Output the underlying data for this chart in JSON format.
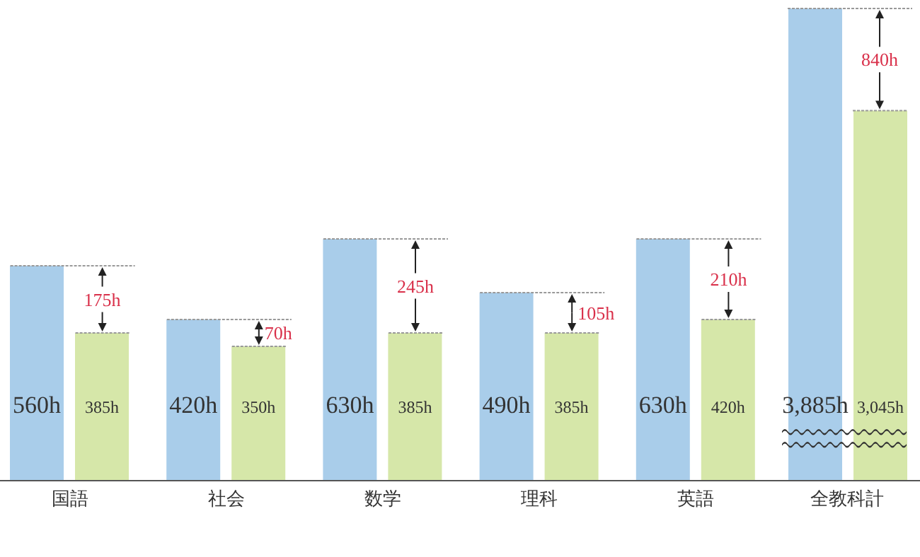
{
  "chart_data": [
    {
      "type": "bar",
      "categories": [
        "国語",
        "社会",
        "数学",
        "理科",
        "英語"
      ],
      "tick_labels": "x",
      "series": [
        {
          "color": "#a9cdea",
          "values": [
            560,
            420,
            630,
            490,
            630
          ],
          "value_labels": [
            "560h",
            "420h",
            "630h",
            "490h",
            "630h"
          ]
        },
        {
          "color": "#d6e7a9",
          "values": [
            385,
            350,
            385,
            385,
            420
          ],
          "value_labels": [
            "385h",
            "350h",
            "385h",
            "385h",
            "420h"
          ]
        }
      ],
      "annotations": [
        {
          "text": "175h",
          "x": "国語",
          "y": 472.5
        },
        {
          "text": "70h",
          "x": "社会",
          "y": 385
        },
        {
          "text": "245h",
          "x": "数学",
          "y": 507.5
        },
        {
          "text": "105h",
          "x": "理科",
          "y": 437.5
        },
        {
          "text": "210h",
          "x": "英語",
          "y": 525
        }
      ]
    },
    {
      "type": "bar",
      "categories": [
        "全教科計"
      ],
      "tick_labels": "x",
      "series": [
        {
          "color": "#a9cdea",
          "values": [
            3885
          ],
          "value_labels": [
            "3,885h"
          ]
        },
        {
          "color": "#d6e7a9",
          "values": [
            3045
          ],
          "value_labels": [
            "3,045h"
          ]
        }
      ],
      "annotations": [
        {
          "text": "840h",
          "x": "全教科計",
          "y": 3465
        }
      ]
    }
  ]
}
